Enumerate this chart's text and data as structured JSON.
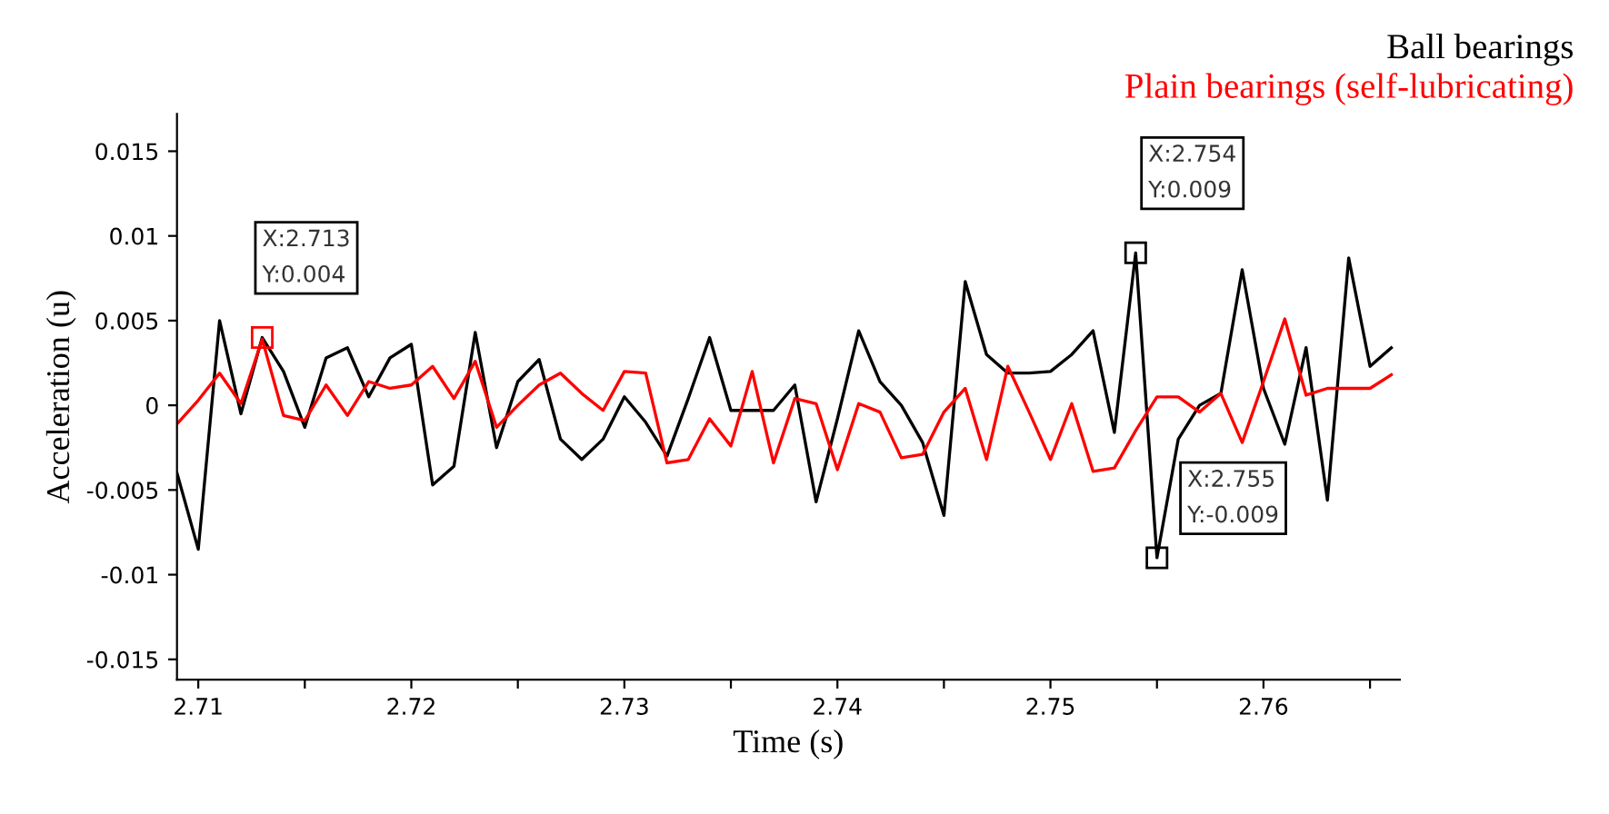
{
  "chart_data": {
    "type": "line",
    "xlabel": "Time (s)",
    "ylabel": "Acceleration (u)",
    "x": [
      2.709,
      2.71,
      2.711,
      2.712,
      2.713,
      2.714,
      2.715,
      2.716,
      2.717,
      2.718,
      2.719,
      2.72,
      2.721,
      2.722,
      2.723,
      2.724,
      2.725,
      2.726,
      2.727,
      2.728,
      2.729,
      2.73,
      2.731,
      2.732,
      2.733,
      2.734,
      2.735,
      2.736,
      2.737,
      2.738,
      2.739,
      2.74,
      2.741,
      2.742,
      2.743,
      2.744,
      2.745,
      2.746,
      2.747,
      2.748,
      2.749,
      2.75,
      2.751,
      2.752,
      2.753,
      2.754,
      2.755,
      2.756,
      2.757,
      2.758,
      2.759,
      2.76,
      2.761,
      2.762,
      2.763,
      2.764,
      2.765,
      2.766
    ],
    "series": [
      {
        "name": "Ball bearings",
        "color": "#000000",
        "values": [
          -0.004,
          -0.0085,
          0.005,
          -0.0005,
          0.004,
          0.002,
          -0.0013,
          0.0028,
          0.0034,
          0.0005,
          0.0028,
          0.0036,
          -0.0047,
          -0.0036,
          0.0043,
          -0.0025,
          0.0014,
          0.0027,
          -0.002,
          -0.0032,
          -0.002,
          0.0005,
          -0.001,
          -0.003,
          0.0004,
          0.004,
          -0.0003,
          -0.0003,
          -0.0003,
          0.0012,
          -0.0057,
          -0.0008,
          0.0044,
          0.0014,
          0,
          -0.0022,
          -0.0065,
          0.0073,
          0.003,
          0.0019,
          0.0019,
          0.002,
          0.003,
          0.0044,
          -0.0016,
          0.009,
          -0.009,
          -0.002,
          0,
          0.0007,
          0.008,
          0.001,
          -0.0023,
          0.0034,
          -0.0056,
          0.0087,
          0.0023,
          0.0034
        ]
      },
      {
        "name": "Plain bearings (self-lubricating)",
        "color": "#ff0000",
        "values": [
          -0.0011,
          0.0003,
          0.0019,
          0.0001,
          0.0039,
          -0.0006,
          -0.0009,
          0.0012,
          -0.0006,
          0.0014,
          0.001,
          0.0012,
          0.0023,
          0.0004,
          0.0026,
          -0.0013,
          0,
          0.0012,
          0.0019,
          0.0007,
          -0.0003,
          0.002,
          0.0019,
          -0.0034,
          -0.0032,
          -0.0008,
          -0.0024,
          0.002,
          -0.0034,
          0.0004,
          0.0001,
          -0.0038,
          0.0001,
          -0.0004,
          -0.0031,
          -0.0029,
          -0.0004,
          0.001,
          -0.0032,
          0.0023,
          -0.0004,
          -0.0032,
          0.0001,
          -0.0039,
          -0.0037,
          -0.0015,
          0.0005,
          0.0005,
          -0.0004,
          0.0007,
          -0.0022,
          0.0014,
          0.0051,
          0.0006,
          0.001,
          0.001,
          0.001,
          0.0018
        ]
      }
    ],
    "xlim": [
      2.709,
      2.7664
    ],
    "ylim": [
      -0.0162,
      0.0172
    ],
    "xticks": [
      2.71,
      {
        "value": 2.715,
        "label": null
      },
      2.72,
      {
        "value": 2.725,
        "label": null
      },
      2.73,
      {
        "value": 2.735,
        "label": null
      },
      2.74,
      {
        "value": 2.745,
        "label": null
      },
      2.75,
      {
        "value": 2.755,
        "label": null
      },
      2.76,
      {
        "value": 2.765,
        "label": null
      }
    ],
    "yticks": [
      -0.015,
      -0.01,
      -0.005,
      0,
      0.005,
      0.01,
      0.015
    ],
    "annotations": [
      {
        "text": "X:2.713\nY:0.004",
        "x": 2.713,
        "y": 0.004
      },
      {
        "text": "X:2.754\nY:0.009",
        "x": 2.754,
        "y": 0.009
      },
      {
        "text": "X:2.755\nY:-0.009",
        "x": 2.755,
        "y": -0.009
      }
    ],
    "legend": "top right",
    "grid": false,
    "marker": "none",
    "line_style": "solid"
  }
}
